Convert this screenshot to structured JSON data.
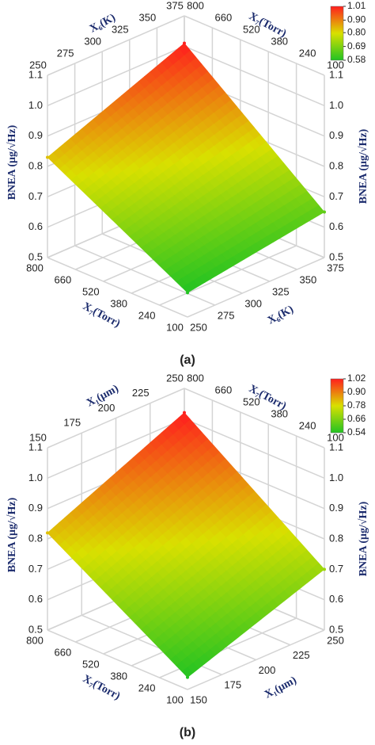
{
  "chart_data": [
    {
      "type": "surface",
      "caption": "(a)",
      "xlabel": "X₆(K)",
      "ylabel": "X₇(Torr)",
      "zlabel": "BNEA (μg/√Hz)",
      "x": [
        250,
        375
      ],
      "y": [
        100,
        800
      ],
      "z": [
        [
          0.58,
          0.65
        ],
        [
          0.83,
          1.01
        ]
      ],
      "xlim": [
        250,
        375
      ],
      "xticks": [
        250,
        275,
        300,
        325,
        350,
        375
      ],
      "ylim": [
        100,
        800
      ],
      "yticks": [
        100,
        240,
        380,
        520,
        660,
        800
      ],
      "zlim": [
        0.5,
        1.1
      ],
      "zticks": [
        0.5,
        0.6,
        0.7,
        0.8,
        0.9,
        {
          "value": 1,
          "label": "1.0"
        },
        1.1
      ],
      "colorbar_ticks": [
        0.58,
        0.69,
        {
          "value": 0.8,
          "label": "0.80"
        },
        {
          "value": 0.9,
          "label": "0.90"
        },
        1.01
      ],
      "colors": [
        "#22c322",
        "#d9e000",
        "#ff1e1e"
      ],
      "grid": true
    },
    {
      "type": "surface",
      "caption": "(b)",
      "xlabel": "X₁(μm)",
      "ylabel": "X₇(Torr)",
      "zlabel": "BNEA (μg/√Hz)",
      "x": [
        150,
        250
      ],
      "y": [
        100,
        800
      ],
      "z": [
        [
          0.54,
          0.7
        ],
        [
          0.82,
          1.02
        ]
      ],
      "xlim": [
        150,
        250
      ],
      "xticks": [
        150,
        175,
        200,
        225,
        250
      ],
      "ylim": [
        100,
        800
      ],
      "yticks": [
        100,
        240,
        380,
        520,
        660,
        800
      ],
      "zlim": [
        0.5,
        1.1
      ],
      "zticks": [
        0.5,
        0.6,
        0.7,
        0.8,
        0.9,
        {
          "value": 1,
          "label": "1.0"
        },
        1.1
      ],
      "colorbar_ticks": [
        0.54,
        0.66,
        0.78,
        {
          "value": 0.9,
          "label": "0.90"
        },
        1.02
      ],
      "colors": [
        "#22c322",
        "#d9e000",
        "#ff1e1e"
      ],
      "grid": true
    }
  ]
}
